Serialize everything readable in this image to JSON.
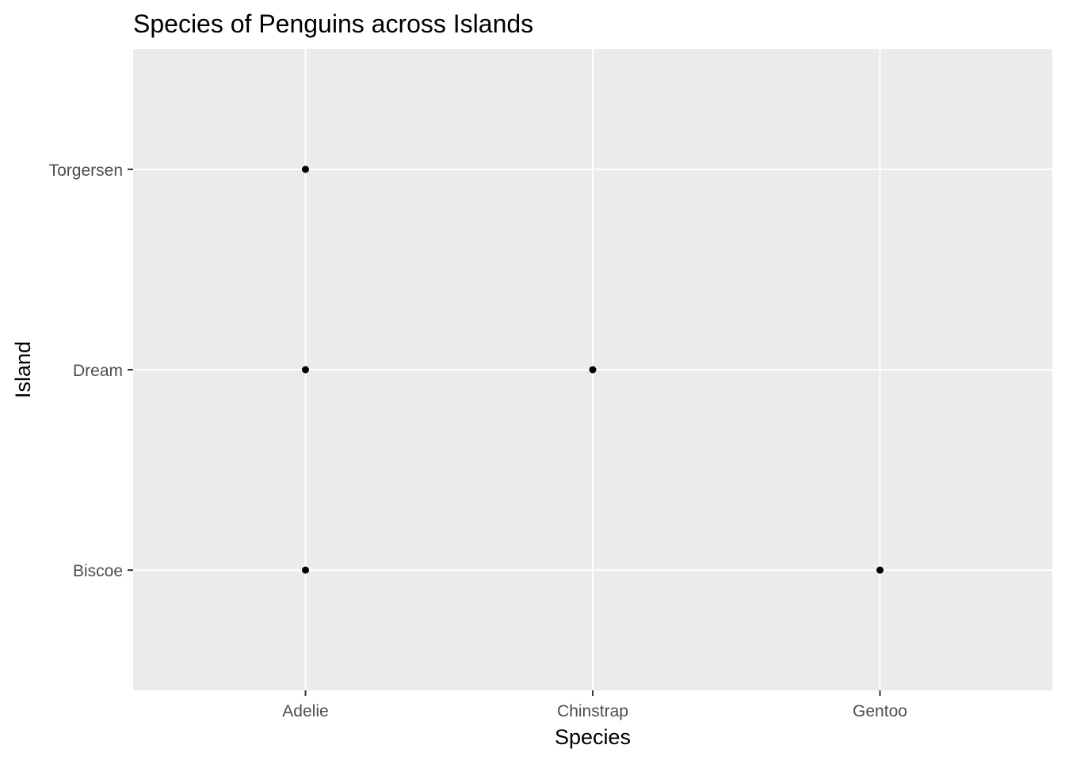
{
  "chart_data": {
    "type": "scatter",
    "title": "Species of Penguins across Islands",
    "xlabel": "Species",
    "ylabel": "Island",
    "x_categories": [
      "Adelie",
      "Chinstrap",
      "Gentoo"
    ],
    "y_categories": [
      "Biscoe",
      "Dream",
      "Torgersen"
    ],
    "points": [
      {
        "x": "Adelie",
        "y": "Torgersen"
      },
      {
        "x": "Adelie",
        "y": "Dream"
      },
      {
        "x": "Adelie",
        "y": "Biscoe"
      },
      {
        "x": "Chinstrap",
        "y": "Dream"
      },
      {
        "x": "Gentoo",
        "y": "Biscoe"
      }
    ],
    "grid": true,
    "legend": "none",
    "colors": {
      "panel_background": "#ebebeb",
      "grid": "#ffffff",
      "point": "#000000",
      "tick": "#333333",
      "tick_label": "#4d4d4d"
    }
  }
}
